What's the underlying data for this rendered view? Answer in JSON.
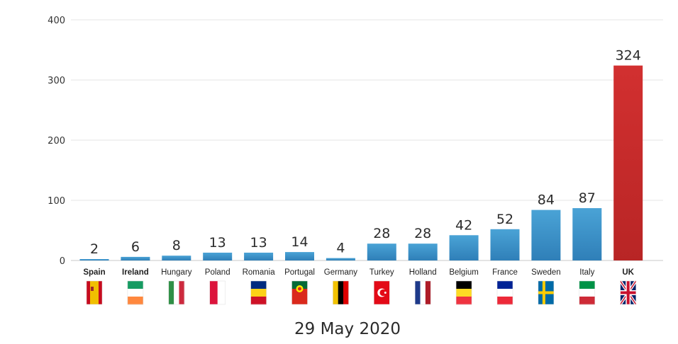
{
  "chart_data": {
    "type": "bar",
    "title": "",
    "xlabel": "29 May 2020",
    "ylabel": "",
    "ylim": [
      0,
      400
    ],
    "yticks": [
      0,
      100,
      200,
      300,
      400
    ],
    "grid": true,
    "categories": [
      "Spain",
      "Ireland",
      "Hungary",
      "Poland",
      "Romania",
      "Portugal",
      "Germany",
      "Turkey",
      "Holland",
      "Belgium",
      "France",
      "Sweden",
      "Italy",
      "UK"
    ],
    "values": [
      2,
      6,
      8,
      13,
      13,
      14,
      4,
      28,
      28,
      42,
      52,
      84,
      87,
      324
    ],
    "bar_colors": [
      "#3d8fc6",
      "#3d8fc6",
      "#3d8fc6",
      "#3d8fc6",
      "#3d8fc6",
      "#3d8fc6",
      "#3d8fc6",
      "#3d8fc6",
      "#3d8fc6",
      "#3d8fc6",
      "#3d8fc6",
      "#3d8fc6",
      "#3d8fc6",
      "#c62b2b"
    ],
    "flag_icons": [
      "spain-flag-icon",
      "ireland-flag-icon",
      "hungary-flag-icon",
      "poland-flag-icon",
      "romania-flag-icon",
      "portugal-flag-icon",
      "germany-flag-icon",
      "turkey-flag-icon",
      "holland-flag-icon",
      "belgium-flag-icon",
      "france-flag-icon",
      "sweden-flag-icon",
      "italy-flag-icon",
      "uk-flag-icon"
    ]
  }
}
